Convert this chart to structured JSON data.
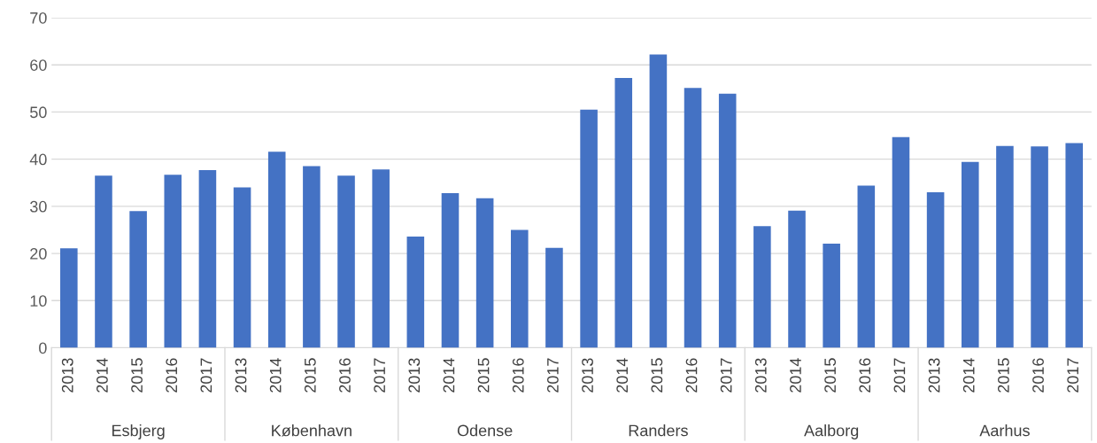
{
  "chart_data": {
    "type": "bar",
    "categories": [
      "2013",
      "2014",
      "2015",
      "2016",
      "2017",
      "2013",
      "2014",
      "2015",
      "2016",
      "2017",
      "2013",
      "2014",
      "2015",
      "2016",
      "2017",
      "2013",
      "2014",
      "2015",
      "2016",
      "2017",
      "2013",
      "2014",
      "2015",
      "2016",
      "2017",
      "2013",
      "2014",
      "2015",
      "2016",
      "2017"
    ],
    "values": [
      21.1,
      36.5,
      29,
      36.7,
      37.7,
      34,
      41.6,
      38.5,
      36.5,
      37.8,
      23.6,
      32.8,
      31.7,
      25,
      21.2,
      50.5,
      57.2,
      62.2,
      55.1,
      53.9,
      25.8,
      29.1,
      22.1,
      34.4,
      44.7,
      33,
      39.4,
      42.8,
      42.7,
      43.4
    ],
    "color": "#4472c4",
    "ylim": [
      0,
      70
    ],
    "yticks": [
      0,
      10,
      20,
      30,
      40,
      50,
      60,
      70
    ],
    "grid": "y",
    "annotations": [
      "Esbjerg",
      "København",
      "Odense",
      "Randers",
      "Aalborg",
      "Aarhus"
    ]
  }
}
